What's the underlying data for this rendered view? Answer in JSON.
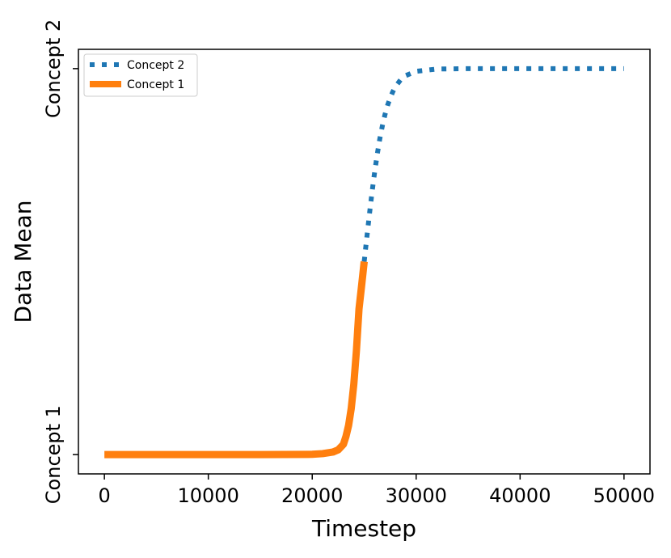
{
  "chart_data": {
    "type": "line",
    "title": "",
    "xlabel": "Timestep",
    "ylabel": "Data Mean",
    "xlim": [
      -2500,
      52500
    ],
    "ylim": [
      -0.05,
      1.05
    ],
    "x_ticks": [
      0,
      10000,
      20000,
      30000,
      40000,
      50000
    ],
    "x_tick_labels": [
      "0",
      "10000",
      "20000",
      "30000",
      "40000",
      "50000"
    ],
    "y_ticks": [
      0,
      1
    ],
    "y_tick_labels": [
      "Concept 1",
      "Concept 2"
    ],
    "grid": false,
    "legend_position": "top-left",
    "legend": [
      {
        "label": "Concept 2",
        "color": "#1f77b4",
        "style": "dotted"
      },
      {
        "label": "Concept 1",
        "color": "#ff7f0e",
        "style": "solid"
      }
    ],
    "series": [
      {
        "name": "Concept 2",
        "color": "#1f77b4",
        "style": "dotted",
        "x": [
          25000,
          25250,
          25500,
          25750,
          26000,
          26250,
          26500,
          26750,
          27000,
          27250,
          27500,
          27750,
          28000,
          28500,
          29000,
          30000,
          32000,
          35000,
          40000,
          45000,
          50000
        ],
        "y": [
          0.5,
          0.562,
          0.622,
          0.679,
          0.731,
          0.777,
          0.818,
          0.852,
          0.881,
          0.905,
          0.924,
          0.94,
          0.953,
          0.971,
          0.982,
          0.993,
          0.999,
          1.0,
          1.0,
          1.0,
          1.0
        ]
      },
      {
        "name": "Concept 1",
        "color": "#ff7f0e",
        "style": "solid",
        "x": [
          0,
          5000,
          10000,
          15000,
          20000,
          21000,
          21500,
          22000,
          22500,
          23000,
          23250,
          23500,
          23750,
          24000,
          24250,
          24500,
          24750,
          25000
        ],
        "y": [
          0.0,
          0.0,
          0.0,
          0.0,
          0.0007,
          0.0025,
          0.0047,
          0.0067,
          0.0124,
          0.0266,
          0.0474,
          0.0759,
          0.1192,
          0.1824,
          0.2689,
          0.3775,
          0.4378,
          0.5
        ]
      }
    ]
  }
}
